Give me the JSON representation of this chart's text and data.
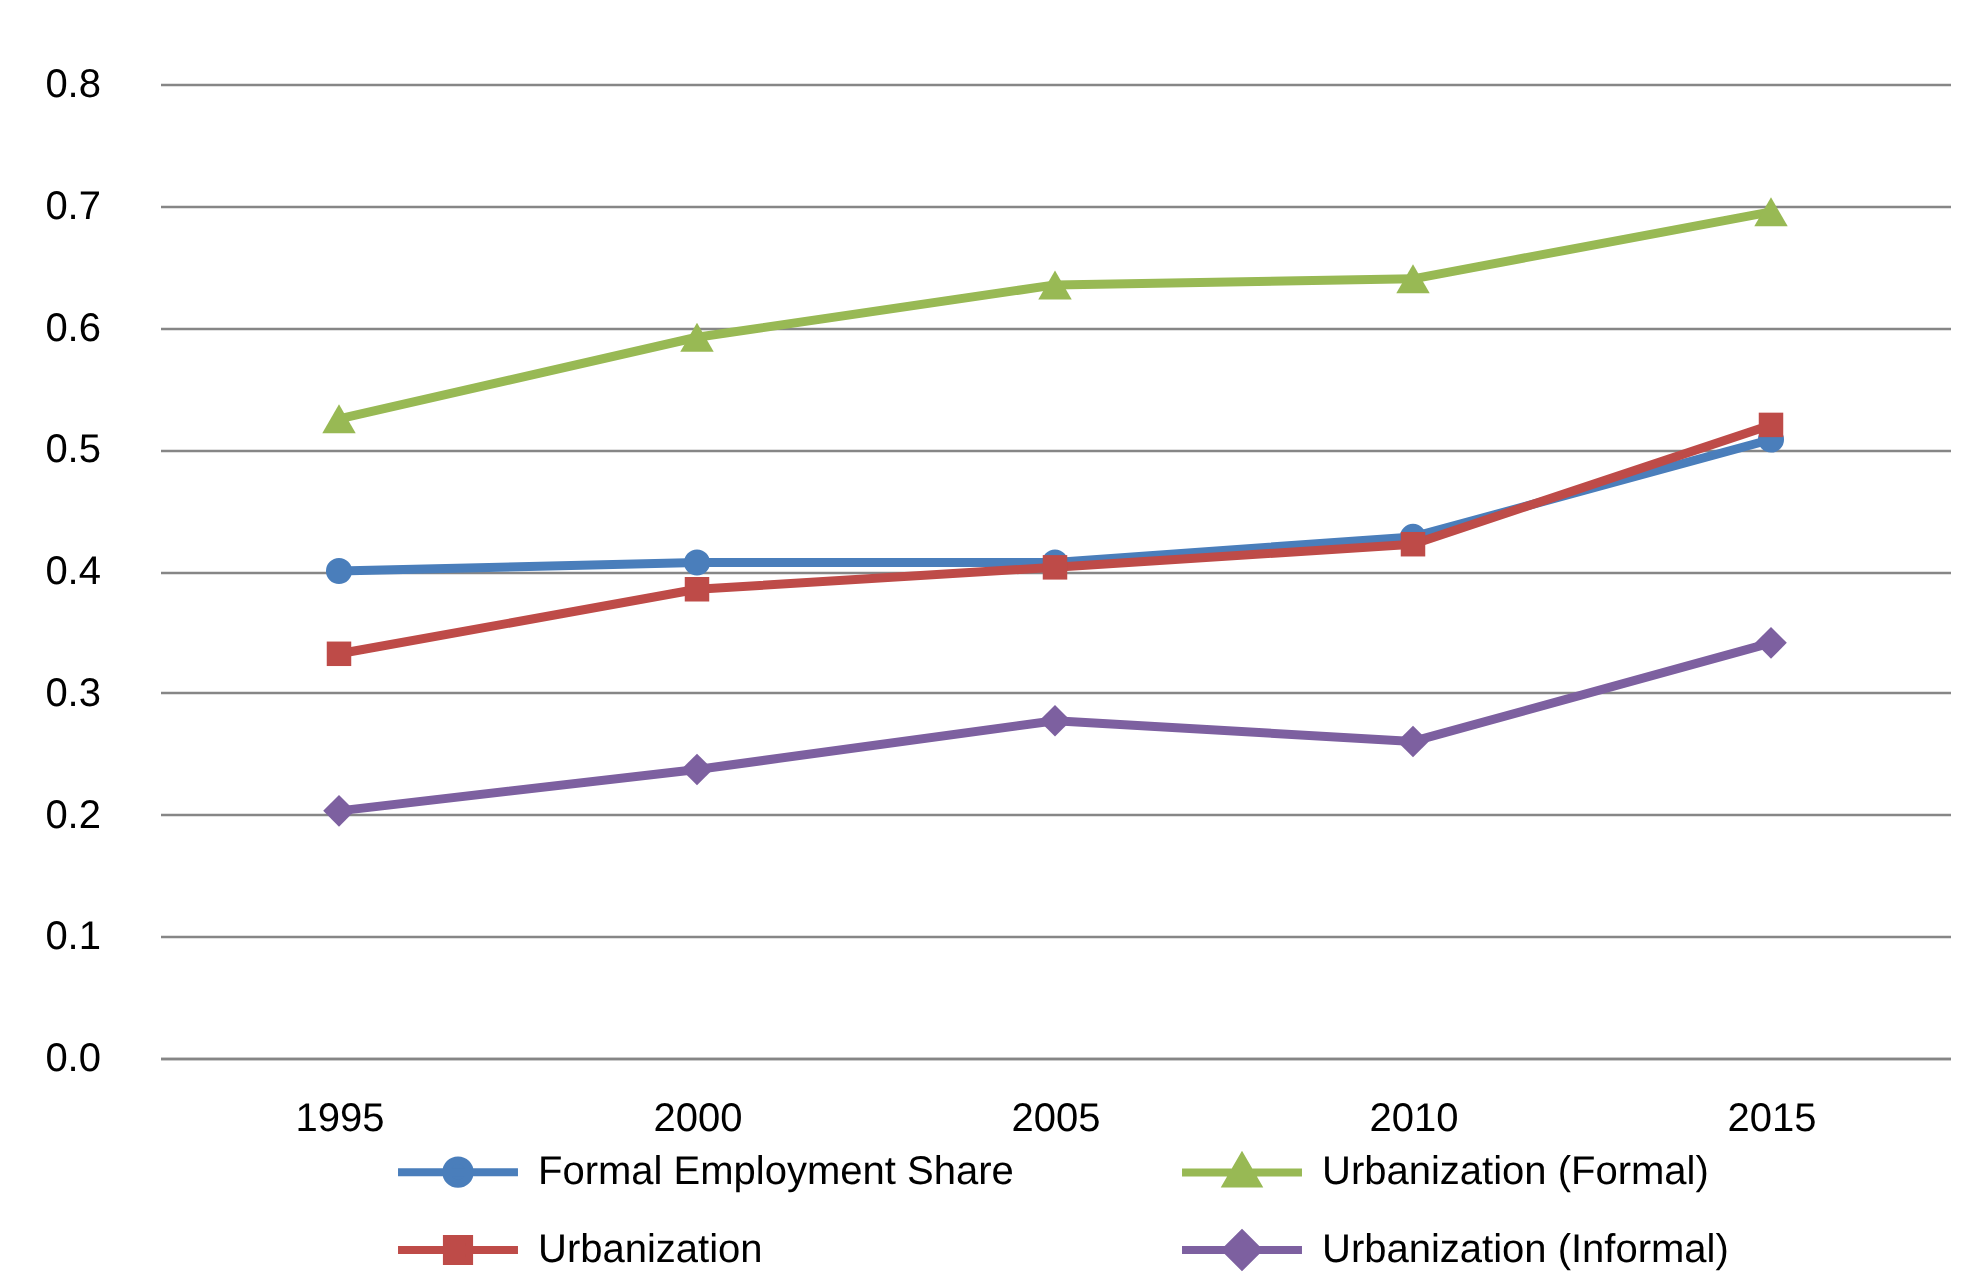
{
  "chart_data": {
    "type": "line",
    "categories": [
      "1995",
      "2000",
      "2005",
      "2010",
      "2015"
    ],
    "ylim": [
      0,
      0.8
    ],
    "yticks": [
      {
        "value": 0,
        "label": "0.0"
      },
      0.1,
      0.2,
      0.3,
      0.4,
      0.5,
      0.6,
      0.7,
      0.8
    ],
    "grid": "y",
    "legend": "bottom",
    "line_style": "solid",
    "series": [
      {
        "name": "Formal Employment Share",
        "color": "#4a7ebb",
        "marker": "circle",
        "values": [
          0.4,
          0.407,
          0.407,
          0.428,
          0.508
        ]
      },
      {
        "name": "Urbanization",
        "color": "#be4b48",
        "marker": "square",
        "values": [
          0.332,
          0.385,
          0.403,
          0.422,
          0.52
        ]
      },
      {
        "name": "Urbanization (Formal)",
        "color": "#98b954",
        "marker": "triangle",
        "values": [
          0.525,
          0.592,
          0.635,
          0.64,
          0.695
        ]
      },
      {
        "name": "Urbanization (Informal)",
        "color": "#7d60a0",
        "marker": "diamond",
        "values": [
          0.203,
          0.237,
          0.277,
          0.26,
          0.341
        ]
      }
    ]
  }
}
